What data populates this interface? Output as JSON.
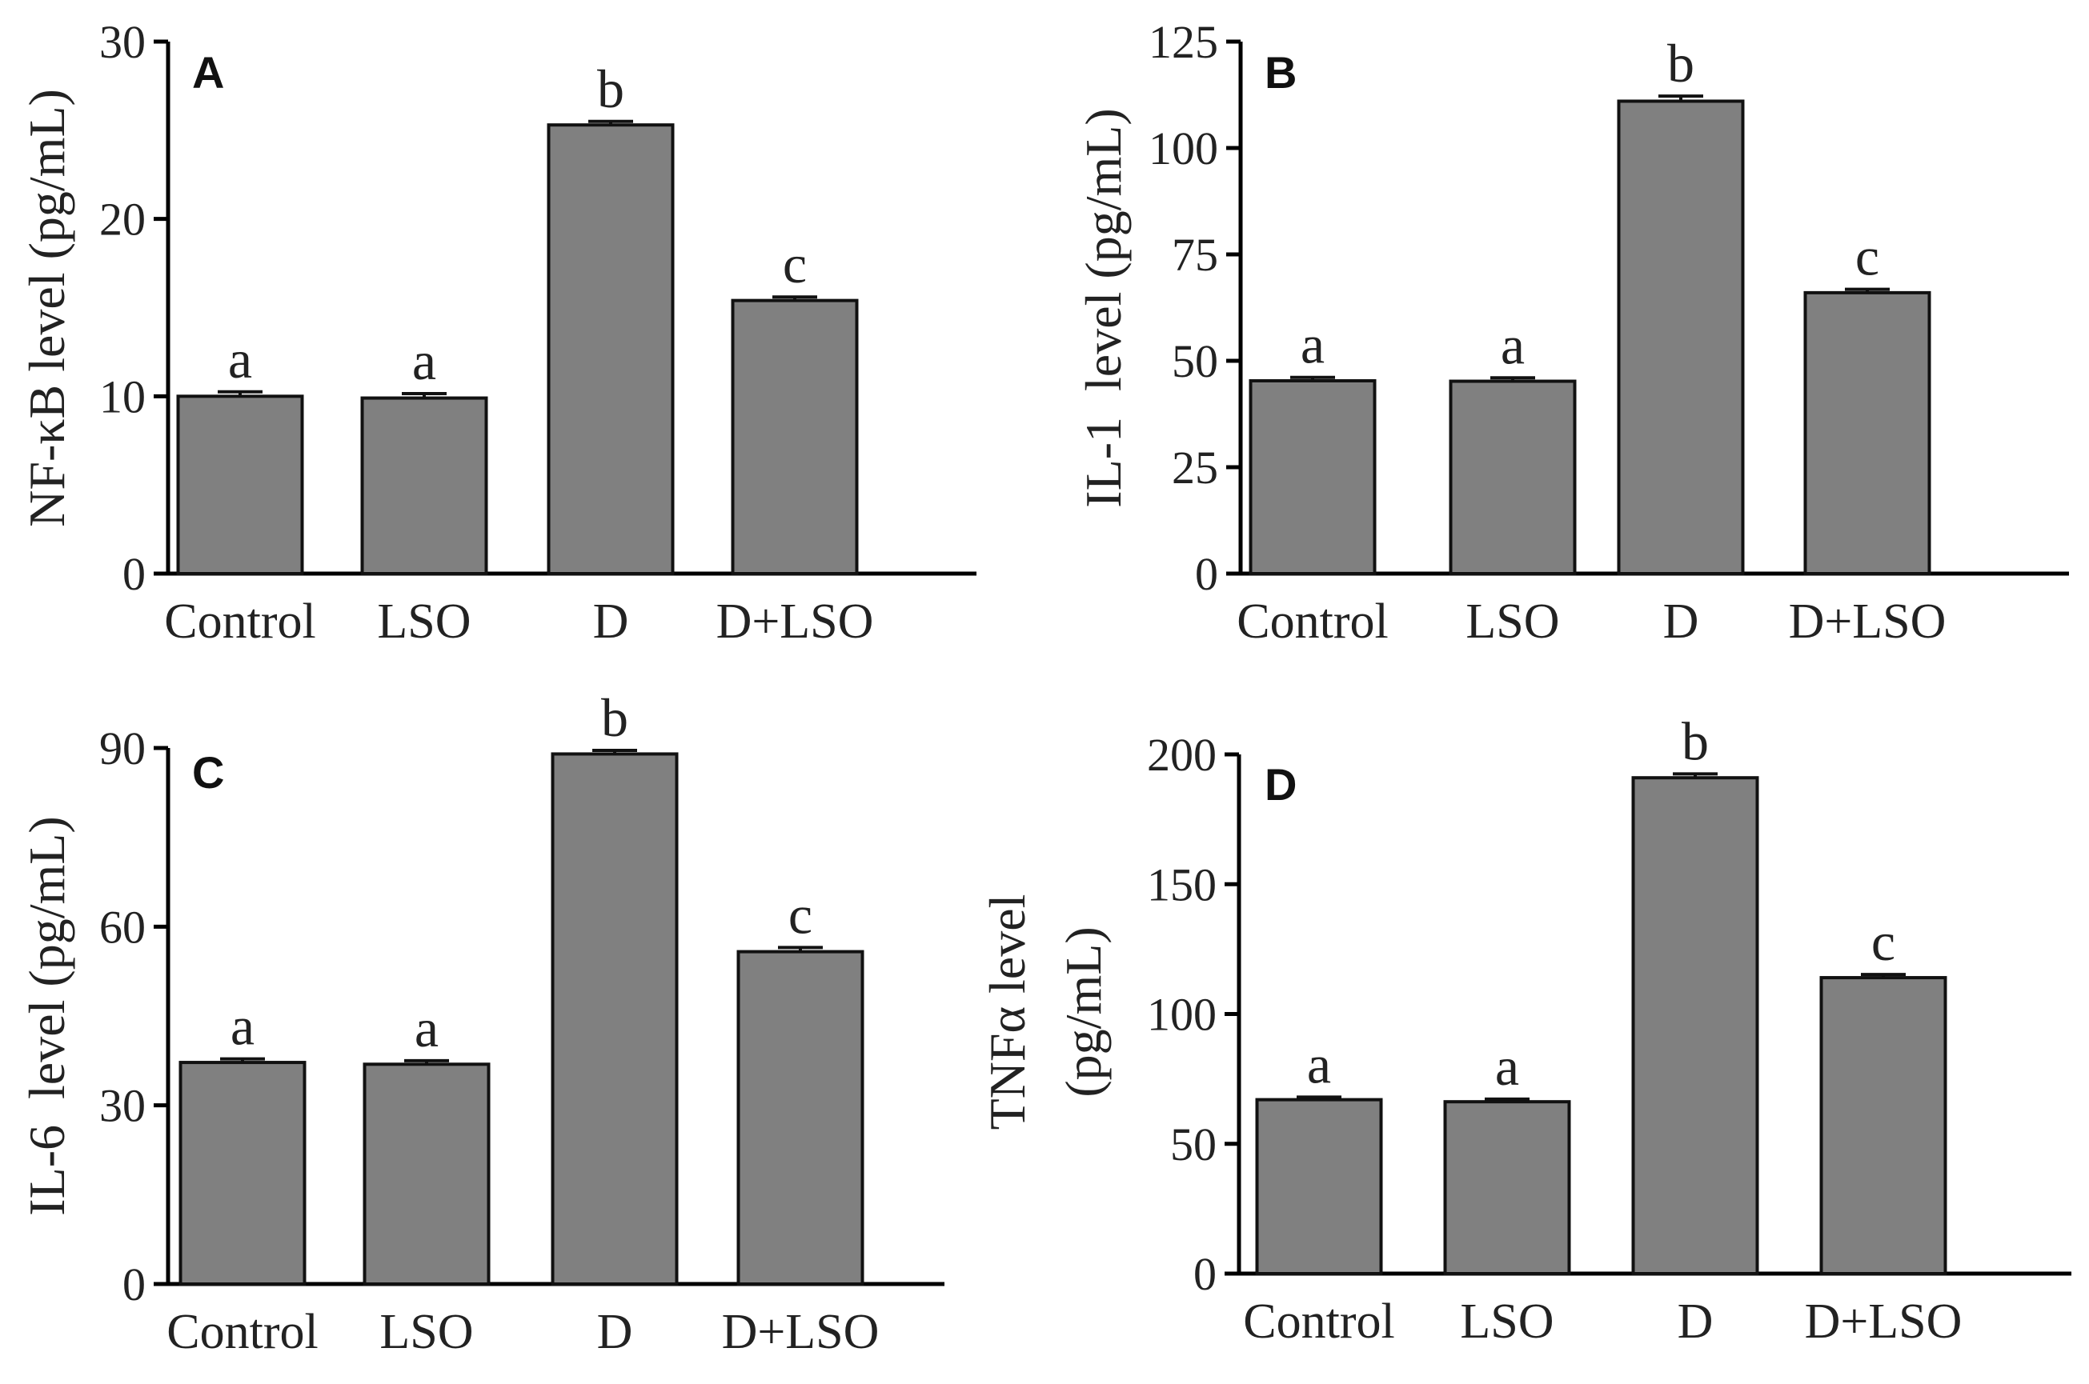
{
  "figure": {
    "colors": {
      "bar_fill": "#808080",
      "bar_stroke": "#111111",
      "axis": "#000000"
    }
  },
  "chart_data": [
    {
      "panel": "A",
      "type": "bar",
      "categories": [
        "Control",
        "LSO",
        "D",
        "D+LSO"
      ],
      "values": [
        10.0,
        9.9,
        25.3,
        15.4
      ],
      "errors": [
        0.25,
        0.25,
        0.2,
        0.2
      ],
      "significance": [
        "a",
        "a",
        "b",
        "c"
      ],
      "ylabel_lines": [
        "NF-κB level (pg/mL)"
      ],
      "ylim": [
        0,
        30
      ],
      "yticks": [
        0,
        10,
        20,
        30
      ]
    },
    {
      "panel": "B",
      "type": "bar",
      "categories": [
        "Control",
        "LSO",
        "D",
        "D+LSO"
      ],
      "values": [
        45.3,
        45.2,
        111.0,
        66.0
      ],
      "errors": [
        0.8,
        0.8,
        1.2,
        0.8
      ],
      "significance": [
        "a",
        "a",
        "b",
        "c"
      ],
      "ylabel_lines": [
        "IL-1  level (pg/mL)"
      ],
      "ylim": [
        0,
        125
      ],
      "yticks": [
        0,
        25,
        50,
        75,
        100,
        125
      ]
    },
    {
      "panel": "C",
      "type": "bar",
      "categories": [
        "Control",
        "LSO",
        "D",
        "D+LSO"
      ],
      "values": [
        37.2,
        36.9,
        89.0,
        55.8
      ],
      "errors": [
        0.6,
        0.6,
        0.6,
        0.7
      ],
      "significance": [
        "a",
        "a",
        "b",
        "c"
      ],
      "ylabel_lines": [
        "IL-6  level (pg/mL)"
      ],
      "ylim": [
        0,
        90
      ],
      "yticks": [
        0,
        30,
        60,
        90
      ]
    },
    {
      "panel": "D",
      "type": "bar",
      "categories": [
        "Control",
        "LSO",
        "D",
        "D+LSO"
      ],
      "values": [
        67.0,
        66.2,
        191.0,
        114.0
      ],
      "errors": [
        1.0,
        1.0,
        1.5,
        1.2
      ],
      "significance": [
        "a",
        "a",
        "b",
        "c"
      ],
      "ylabel_lines": [
        "TNFα level",
        "(pg/mL)"
      ],
      "ylim": [
        0,
        200
      ],
      "yticks": [
        0,
        50,
        100,
        150,
        200
      ]
    }
  ]
}
